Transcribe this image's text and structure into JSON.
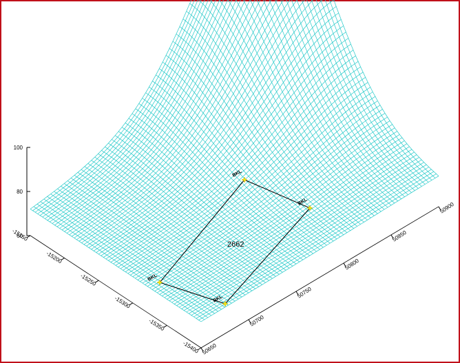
{
  "chart_data": {
    "type": "surface",
    "title": "",
    "x_axis": {
      "label": "",
      "ticks": [
        "50650",
        "50700",
        "50750",
        "50800",
        "50850",
        "50900"
      ]
    },
    "y_axis": {
      "label": "",
      "ticks": [
        "-15400",
        "-15350",
        "-15300",
        "-15250",
        "-15200",
        "-15150"
      ]
    },
    "z_axis": {
      "label": "",
      "ticks": [
        "60",
        "80",
        "100"
      ]
    },
    "surface_color": "#22c9c9",
    "boundary_color": "#000000",
    "well_marker_color": "#f5e61a",
    "annotation": "2662",
    "wells": [
      {
        "label": "BKL"
      },
      {
        "label": "BKL"
      },
      {
        "label": "BKL"
      },
      {
        "label": "BKL"
      }
    ]
  }
}
